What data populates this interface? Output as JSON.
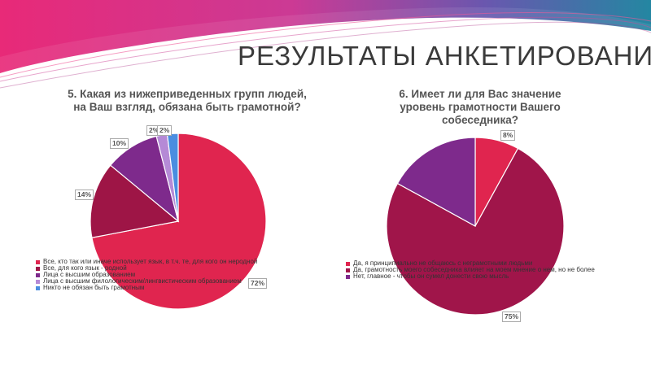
{
  "slide": {
    "title": "РЕЗУЛЬТАТЫ АНКЕТИРОВАНИЯ",
    "colors": {
      "banner_left": "#e0206e",
      "banner_right": "#1a7a9a",
      "title_text": "#3a3a3a"
    }
  },
  "chart_data": [
    {
      "type": "pie",
      "title": "5. Какая из нижеприведенных групп людей, на Ваш взгляд, обязана быть грамотной?",
      "slices": [
        {
          "label": "Все, кто так или иначе использует язык, в т.ч. те, для кого он неродной",
          "value": 72,
          "label_text": "72%",
          "color": "#e0254f"
        },
        {
          "label": "Все, для кого язык - родной",
          "value": 14,
          "label_text": "14%",
          "color": "#9e1546"
        },
        {
          "label": "Лица с высшим образованием",
          "value": 10,
          "label_text": "10%",
          "color": "#7e2a8c"
        },
        {
          "label": "Лица с высшим филологическим/лингвистическим образованием",
          "value": 2,
          "label_text": "2%",
          "color": "#b58ad6"
        },
        {
          "label": "Никто не обязан быть грамотным",
          "value": 2,
          "label_text": "2%",
          "color": "#4a8de0"
        }
      ],
      "legend_position": "bottom-overlay"
    },
    {
      "type": "pie",
      "title": "6. Имеет ли для Вас значение уровень грамотности Вашего собеседника?",
      "slices": [
        {
          "label": "Да, я принципиально не общаюсь с неграмотными людьми",
          "value": 8,
          "label_text": "8%",
          "color": "#e0254f"
        },
        {
          "label": "Да, грамотность моего собеседника влияет на моем мнение о нем, но не более",
          "value": 75,
          "label_text": "75%",
          "color": "#a0154a"
        },
        {
          "label": "Нет, главное - чтобы он сумел донести свою мысль",
          "value": 17,
          "label_text": "",
          "color": "#7e2a8c"
        }
      ],
      "legend_position": "bottom-overlay"
    }
  ]
}
